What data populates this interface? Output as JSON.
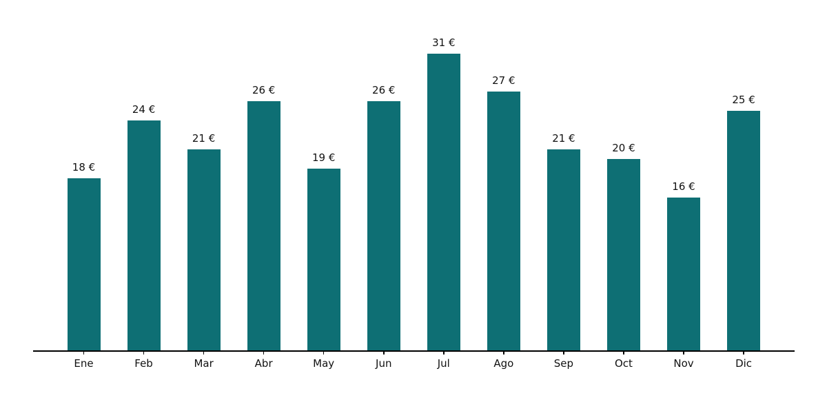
{
  "chart_data": {
    "type": "bar",
    "categories": [
      "Ene",
      "Feb",
      "Mar",
      "Abr",
      "May",
      "Jun",
      "Jul",
      "Ago",
      "Sep",
      "Oct",
      "Nov",
      "Dic"
    ],
    "values": [
      18,
      24,
      21,
      26,
      19,
      26,
      31,
      27,
      21,
      20,
      16,
      25
    ],
    "data_labels": [
      "18 €",
      "24 €",
      "21 €",
      "26 €",
      "19 €",
      "26 €",
      "31 €",
      "27 €",
      "21 €",
      "20 €",
      "16 €",
      "25 €"
    ],
    "unit": "€",
    "title": "",
    "xlabel": "",
    "ylabel": "",
    "ylim": [
      0,
      33
    ],
    "grid": false,
    "legend": null,
    "y_axis_visible": false,
    "bar_color": "#0e6f74",
    "axis_color": "#000000",
    "label_color": "#111111"
  }
}
